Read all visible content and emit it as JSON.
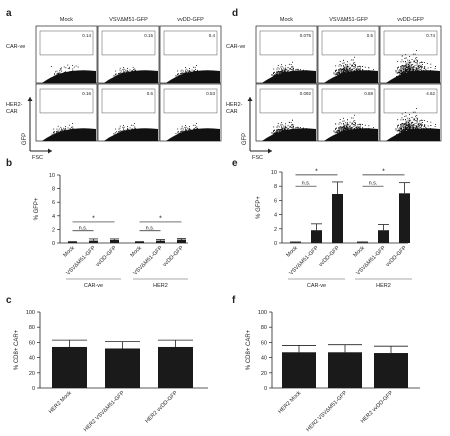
{
  "panel_letters": {
    "a": "a",
    "b": "b",
    "c": "c",
    "d": "d",
    "e": "e",
    "f": "f"
  },
  "flow_columns": [
    "Mock",
    "VSVΔM51-GFP",
    "vvDD-GFP"
  ],
  "flow_rows": [
    "CAR-ve",
    "HER2-\nCAR"
  ],
  "flow_axes": {
    "x": "FSC",
    "y": "GFP"
  },
  "flow_panels": [
    {
      "panel": "a",
      "gate_values": [
        [
          "0.14",
          "0.15",
          "0.4"
        ],
        [
          "0.16",
          "0.6",
          "0.53"
        ]
      ]
    },
    {
      "panel": "d",
      "gate_values": [
        [
          "0.075",
          "0.5",
          "0.74"
        ],
        [
          "0.092",
          "0.68",
          "4.62"
        ]
      ]
    }
  ],
  "colors": {
    "bar_fill": "#1a1a1a",
    "axis": "#222222",
    "scatter": "#111111"
  },
  "chart_data": [
    {
      "panel": "b",
      "type": "bar",
      "ylabel": "% GFP+",
      "ylim": [
        0,
        10
      ],
      "yticks": [
        0,
        2,
        4,
        6,
        8,
        10
      ],
      "categories": [
        "Mock",
        "VSVΔM51-GFP",
        "vvDD-GFP",
        "Mock",
        "VSVΔM51-GFP",
        "vvDD-GFP"
      ],
      "values": [
        0.15,
        0.35,
        0.45,
        0.15,
        0.35,
        0.5
      ],
      "errors": [
        0.05,
        0.25,
        0.15,
        0.05,
        0.15,
        0.15
      ],
      "groups": [
        {
          "label": "CAR-ve",
          "from": 0,
          "to": 2
        },
        {
          "label": "HER2",
          "from": 3,
          "to": 5
        }
      ],
      "annotations": [
        {
          "from": 0,
          "to": 1,
          "text": "n.s.",
          "y": 1.8
        },
        {
          "from": 0,
          "to": 2,
          "text": "*",
          "y": 3.1
        },
        {
          "from": 3,
          "to": 4,
          "text": "n.s.",
          "y": 1.8
        },
        {
          "from": 3,
          "to": 5,
          "text": "*",
          "y": 3.1
        }
      ]
    },
    {
      "panel": "e",
      "type": "bar",
      "ylabel": "% GFP+",
      "ylim": [
        0,
        10
      ],
      "yticks": [
        0,
        2,
        4,
        6,
        8,
        10
      ],
      "categories": [
        "Mock",
        "VSVΔM51-GFP",
        "vvDD-GFP",
        "Mock",
        "VSVΔM51-GFP",
        "vvDD-GFP"
      ],
      "values": [
        0.1,
        1.8,
        6.9,
        0.1,
        1.8,
        7.0
      ],
      "errors": [
        0.05,
        0.9,
        1.7,
        0.05,
        0.8,
        1.5
      ],
      "groups": [
        {
          "label": "CAR-ve",
          "from": 0,
          "to": 2
        },
        {
          "label": "HER2",
          "from": 3,
          "to": 5
        }
      ],
      "annotations": [
        {
          "from": 0,
          "to": 1,
          "text": "n.s.",
          "y": 8.0
        },
        {
          "from": 0,
          "to": 2,
          "text": "*",
          "y": 9.6
        },
        {
          "from": 3,
          "to": 4,
          "text": "n.s.",
          "y": 8.0
        },
        {
          "from": 3,
          "to": 5,
          "text": "*",
          "y": 9.6
        }
      ]
    },
    {
      "panel": "c",
      "type": "bar",
      "ylabel": "% CD8+ CAR+",
      "ylim": [
        0,
        100
      ],
      "yticks": [
        0,
        20,
        40,
        60,
        80,
        100
      ],
      "categories": [
        "HER2 Mock",
        "HER2 VSVΔM51-GFP",
        "HER2 vvDD-GFP"
      ],
      "values": [
        54,
        52,
        54
      ],
      "errors": [
        9,
        9,
        9
      ]
    },
    {
      "panel": "f",
      "type": "bar",
      "ylabel": "% CD8+ CAR+",
      "ylim": [
        0,
        100
      ],
      "yticks": [
        0,
        20,
        40,
        60,
        80,
        100
      ],
      "categories": [
        "HER2 Mock",
        "HER2 VSVΔM51-GFP",
        "HER2 vvDD-GFP"
      ],
      "values": [
        47,
        47,
        46
      ],
      "errors": [
        9,
        10,
        9
      ]
    }
  ]
}
